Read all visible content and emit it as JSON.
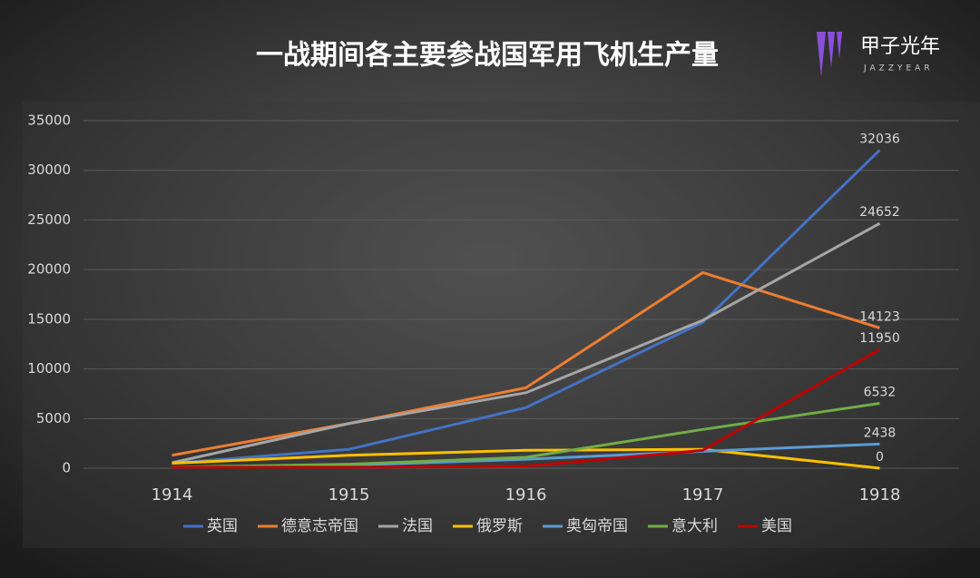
{
  "logo": {
    "name": "甲子光年",
    "sub": "JAZZYEAR"
  },
  "chart_data": {
    "type": "line",
    "title": "一战期间各主要参战国军用飞机生产量",
    "categories": [
      "1914",
      "1915",
      "1916",
      "1917",
      "1918"
    ],
    "ylim": [
      0,
      35000
    ],
    "yticks": [
      0,
      5000,
      10000,
      15000,
      20000,
      25000,
      30000,
      35000
    ],
    "grid": true,
    "series": [
      {
        "name": "英国",
        "color": "#4472c4",
        "values": [
          500,
          1900,
          6100,
          14700,
          32036
        ]
      },
      {
        "name": "德意志帝国",
        "color": "#ed7d31",
        "values": [
          1300,
          4500,
          8100,
          19700,
          14123
        ]
      },
      {
        "name": "法国",
        "color": "#a5a5a5",
        "values": [
          550,
          4500,
          7600,
          14900,
          24652
        ]
      },
      {
        "name": "俄罗斯",
        "color": "#ffc000",
        "values": [
          500,
          1300,
          1800,
          1900,
          0
        ]
      },
      {
        "name": "奥匈帝国",
        "color": "#5b9bd5",
        "values": [
          100,
          300,
          900,
          1700,
          2438
        ]
      },
      {
        "name": "意大利",
        "color": "#70ad47",
        "values": [
          100,
          400,
          1100,
          3900,
          6532
        ]
      },
      {
        "name": "美国",
        "color": "#c00000",
        "values": [
          100,
          100,
          200,
          1800,
          11950
        ]
      }
    ]
  }
}
